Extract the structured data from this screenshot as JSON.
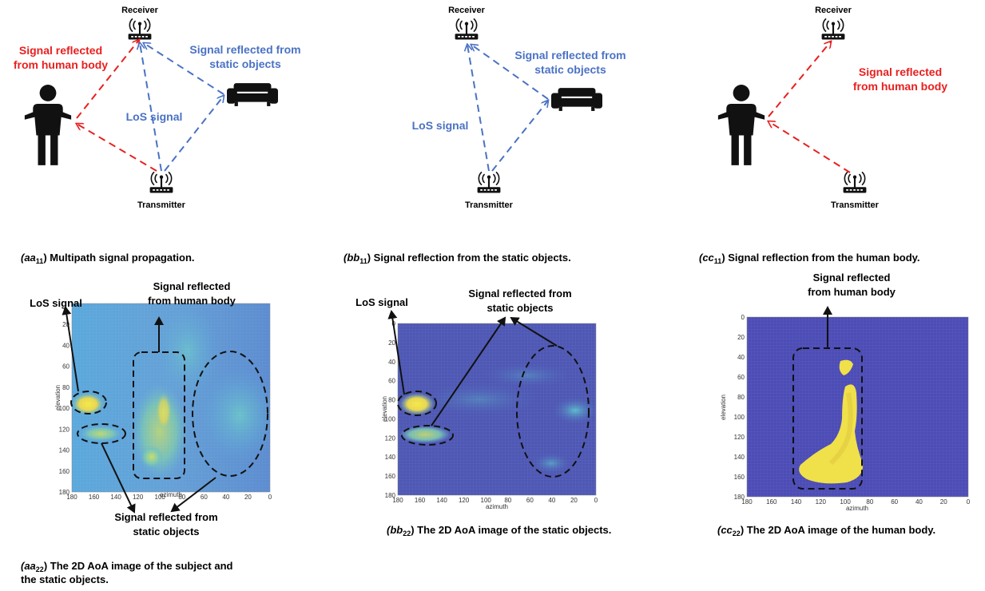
{
  "colors": {
    "human_signal": "#e8201f",
    "static_signal": "#4a72c4",
    "los_blue_text": "#4a72c4",
    "heatmap_a": "#5aa6d8",
    "heatmap_b": "#4e58b4",
    "heatmap_c": "#4a4ab4",
    "hotspot": "#f2e24a"
  },
  "icons": {
    "router": "wifi-router-icon",
    "person": "person-icon",
    "sofa": "sofa-icon"
  },
  "diagram_a": {
    "receiver": "Receiver",
    "transmitter": "Transmitter",
    "human_label_1": "Signal reflected",
    "human_label_2": "from human body",
    "static_label_1": "Signal reflected from",
    "static_label_2": "static objects",
    "los_label": "LoS signal"
  },
  "diagram_b": {
    "receiver": "Receiver",
    "transmitter": "Transmitter",
    "static_label_1": "Signal reflected from",
    "static_label_2": "static objects",
    "los_label": "LoS signal"
  },
  "diagram_c": {
    "receiver": "Receiver",
    "transmitter": "Transmitter",
    "human_label_1": "Signal reflected",
    "human_label_2": "from human body"
  },
  "captions": {
    "a11_sym": "(aa",
    "a11_sub": "11",
    "a11_text": ") Multipath signal propagation.",
    "b11_sym": "(bb",
    "b11_sub": "11",
    "b11_text": ") Signal reflection from the static objects.",
    "c11_sym": "(cc",
    "c11_sub": "11",
    "c11_text": ") Signal reflection from the human body.",
    "a22_sym": "(aa",
    "a22_sub": "22",
    "a22_text": ") The 2D AoA image of the  subject and",
    "a22_text2": "the static objects.",
    "b22_sym": "(bb",
    "b22_sub": "22",
    "b22_text": ") The 2D AoA image of the static objects.",
    "c22_sym": "(cc",
    "c22_sub": "22",
    "c22_text": ") The 2D AoA image of the human body."
  },
  "heatmap_a": {
    "los": "LoS signal",
    "human_1": "Signal reflected",
    "human_2": "from human body",
    "static_1": "Signal reflected from",
    "static_2": "static objects",
    "xlabel": "azimuth",
    "ylabel": "elevation"
  },
  "heatmap_b": {
    "los": "LoS signal",
    "static_1": "Signal reflected from",
    "static_2": "static objects",
    "xlabel": "azimuth",
    "ylabel": "elevation"
  },
  "heatmap_c": {
    "human_1": "Signal reflected",
    "human_2": "from human body",
    "xlabel": "azimuth",
    "ylabel": "elevation"
  },
  "axes": {
    "y_ticks": [
      "0",
      "20",
      "40",
      "60",
      "80",
      "100",
      "120",
      "140",
      "160",
      "180"
    ],
    "x_ticks": [
      "180",
      "160",
      "140",
      "120",
      "100",
      "80",
      "60",
      "40",
      "20",
      "0"
    ]
  }
}
